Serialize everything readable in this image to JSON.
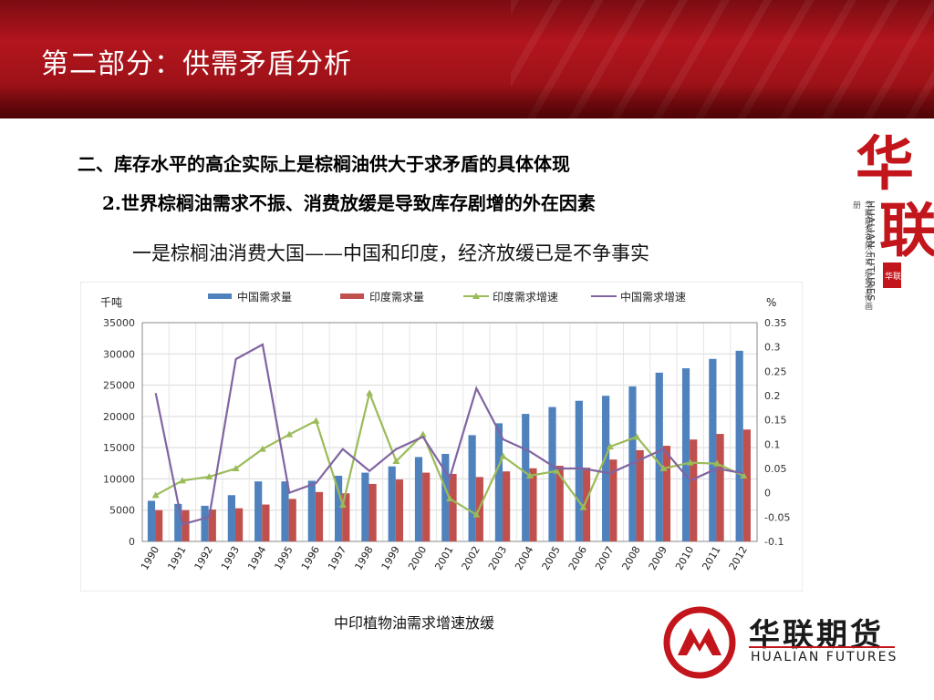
{
  "header": {
    "title": "第二部分：供需矛盾分析"
  },
  "content": {
    "line1": "二、库存水平的高企实际上是棕榈油供大于求矛盾的具体体现",
    "line2": "2.世界棕榈油需求不振、消费放缓是导致库存剧增的外在因素",
    "line3": "一是棕榈油消费大国——中国和印度，经济放缓已是不争事实",
    "caption": "中印植物油需求增速放缓"
  },
  "side_logo": {
    "glyph1": "华",
    "glyph2": "联",
    "en": "HUALIAN FUTURES",
    "cn_small": "华联期货有限公司 形象宣传画册",
    "seal": "华联"
  },
  "brand": {
    "name": "华联期货",
    "en": "HUALIAN FUTURES"
  },
  "colors": {
    "china_bar": "#4f81bd",
    "india_bar": "#c0504d",
    "india_growth": "#9bbb59",
    "china_growth": "#8064a2",
    "header_red": "#b3151d"
  },
  "chart_data": {
    "type": "bar",
    "categories": [
      "1990",
      "1991",
      "1992",
      "1993",
      "1994",
      "1995",
      "1996",
      "1997",
      "1998",
      "1999",
      "2000",
      "2001",
      "2002",
      "2003",
      "2004",
      "2005",
      "2006",
      "2007",
      "2008",
      "2009",
      "2010",
      "2011",
      "2012"
    ],
    "ylabel_left": "千吨",
    "ylabel_right": "%",
    "ylim_left": [
      0,
      35000
    ],
    "yticks_left": [
      "0",
      "5000",
      "10000",
      "15000",
      "20000",
      "25000",
      "30000",
      "35000"
    ],
    "ylim_right": [
      -0.1,
      0.35
    ],
    "yticks_right": [
      "-0.1",
      "-0.05",
      "0",
      "0.05",
      "0.1",
      "0.15",
      "0.2",
      "0.25",
      "0.3",
      "0.35"
    ],
    "legend_position": "top",
    "grid": true,
    "series": [
      {
        "name": "中国需求量",
        "kind": "bar",
        "axis": "left",
        "values": [
          6500,
          6000,
          5700,
          7400,
          9600,
          9600,
          9700,
          10500,
          11000,
          12000,
          13500,
          14000,
          17000,
          18900,
          20400,
          21500,
          22500,
          23300,
          24800,
          27000,
          27700,
          29200,
          30500
        ]
      },
      {
        "name": "印度需求量",
        "kind": "bar",
        "axis": "left",
        "values": [
          5000,
          5000,
          5100,
          5300,
          5900,
          6800,
          7900,
          7700,
          9200,
          9900,
          11000,
          10800,
          10300,
          11200,
          11700,
          12100,
          11800,
          13100,
          14600,
          15300,
          16300,
          17200,
          17900
        ]
      },
      {
        "name": "印度需求增速",
        "kind": "line",
        "axis": "right",
        "values": [
          -0.005,
          0.025,
          0.033,
          0.05,
          0.09,
          0.12,
          0.148,
          -0.025,
          0.205,
          0.065,
          0.12,
          -0.012,
          -0.045,
          0.075,
          0.035,
          0.045,
          -0.03,
          0.095,
          0.115,
          0.05,
          0.062,
          0.06,
          0.035
        ]
      },
      {
        "name": "中国需求增速",
        "kind": "line",
        "axis": "right",
        "values": [
          0.205,
          -0.065,
          -0.05,
          0.275,
          0.305,
          0,
          0.02,
          0.09,
          0.045,
          0.09,
          0.115,
          0.03,
          0.215,
          0.11,
          0.085,
          0.05,
          0.05,
          0.04,
          0.065,
          0.09,
          0.025,
          0.05,
          0.04
        ]
      }
    ]
  }
}
